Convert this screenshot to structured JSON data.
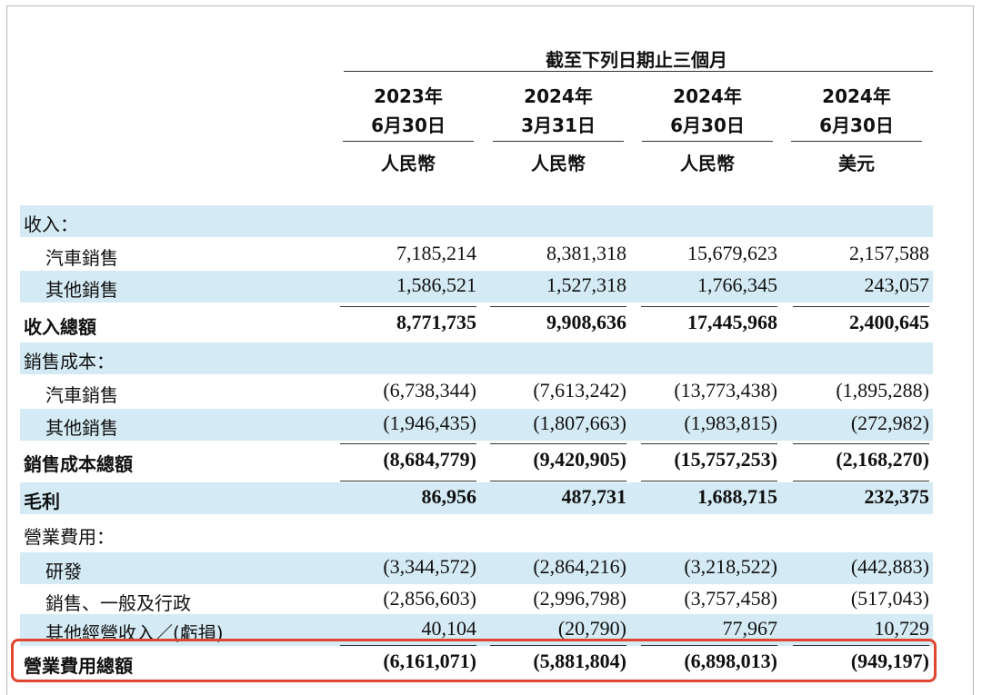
{
  "header": {
    "period": "截至下列日期止三個月",
    "columns": [
      {
        "year": "2023年",
        "date": "6月30日",
        "currency": "人民幣"
      },
      {
        "year": "2024年",
        "date": "3月31日",
        "currency": "人民幣"
      },
      {
        "year": "2024年",
        "date": "6月30日",
        "currency": "人民幣"
      },
      {
        "year": "2024年",
        "date": "6月30日",
        "currency": "美元"
      }
    ]
  },
  "table": {
    "rows": [
      {
        "label": "收入："
      },
      {
        "label": "汽車銷售",
        "level": 1,
        "values": [
          "7,185,214",
          "8,381,318",
          "15,679,623",
          "2,157,588"
        ]
      },
      {
        "label": "其他銷售",
        "level": 1,
        "values": [
          "1,586,521",
          "1,527,318",
          "1,766,345",
          "243,057"
        ]
      },
      {
        "label": "收入總額",
        "total": true,
        "values": [
          "8,771,735",
          "9,908,636",
          "17,445,968",
          "2,400,645"
        ]
      },
      {
        "label": "銷售成本："
      },
      {
        "label": "汽車銷售",
        "level": 1,
        "values": [
          "(6,738,344)",
          "(7,613,242)",
          "(13,773,438)",
          "(1,895,288)"
        ]
      },
      {
        "label": "其他銷售",
        "level": 1,
        "values": [
          "(1,946,435)",
          "(1,807,663)",
          "(1,983,815)",
          "(272,982)"
        ]
      },
      {
        "label": "銷售成本總額",
        "total": true,
        "values": [
          "(8,684,779)",
          "(9,420,905)",
          "(15,757,253)",
          "(2,168,270)"
        ]
      },
      {
        "label": "毛利",
        "total": true,
        "values": [
          "86,956",
          "487,731",
          "1,688,715",
          "232,375"
        ]
      },
      {
        "label": "營業費用："
      },
      {
        "label": "研發",
        "level": 1,
        "values": [
          "(3,344,572)",
          "(2,864,216)",
          "(3,218,522)",
          "(442,883)"
        ]
      },
      {
        "label": "銷售、一般及行政",
        "level": 1,
        "values": [
          "(2,856,603)",
          "(2,996,798)",
          "(3,757,458)",
          "(517,043)"
        ]
      },
      {
        "label": "其他經營收入／(虧損)",
        "level": 1,
        "values": [
          "40,104",
          "(20,790)",
          "77,967",
          "10,729"
        ]
      },
      {
        "label": "營業費用總額",
        "total": true,
        "highlight": true,
        "values": [
          "(6,161,071)",
          "(5,881,804)",
          "(6,898,013)",
          "(949,197)"
        ]
      }
    ]
  }
}
